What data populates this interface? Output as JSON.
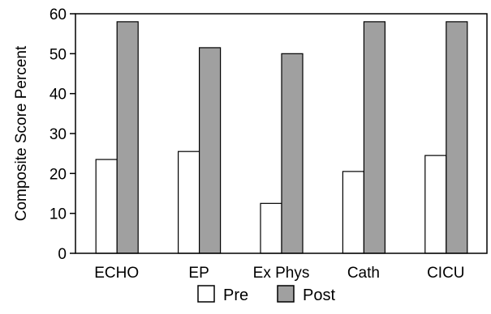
{
  "chart_data": {
    "type": "bar",
    "title": "",
    "xlabel": "",
    "ylabel": "Composite Score Percent",
    "ylim": [
      0,
      60
    ],
    "yticks": [
      0,
      10,
      20,
      30,
      40,
      50,
      60
    ],
    "categories": [
      "ECHO",
      "EP",
      "Ex Phys",
      "Cath",
      "CICU"
    ],
    "series": [
      {
        "name": "Pre",
        "values": [
          23.5,
          25.5,
          12.5,
          20.5,
          24.5
        ]
      },
      {
        "name": "Post",
        "values": [
          58,
          51.5,
          50,
          58,
          58
        ]
      }
    ],
    "legend_position": "bottom",
    "grid": false
  },
  "colors": {
    "pre": "#ffffff",
    "post": "#a0a0a0",
    "stroke": "#000000"
  }
}
